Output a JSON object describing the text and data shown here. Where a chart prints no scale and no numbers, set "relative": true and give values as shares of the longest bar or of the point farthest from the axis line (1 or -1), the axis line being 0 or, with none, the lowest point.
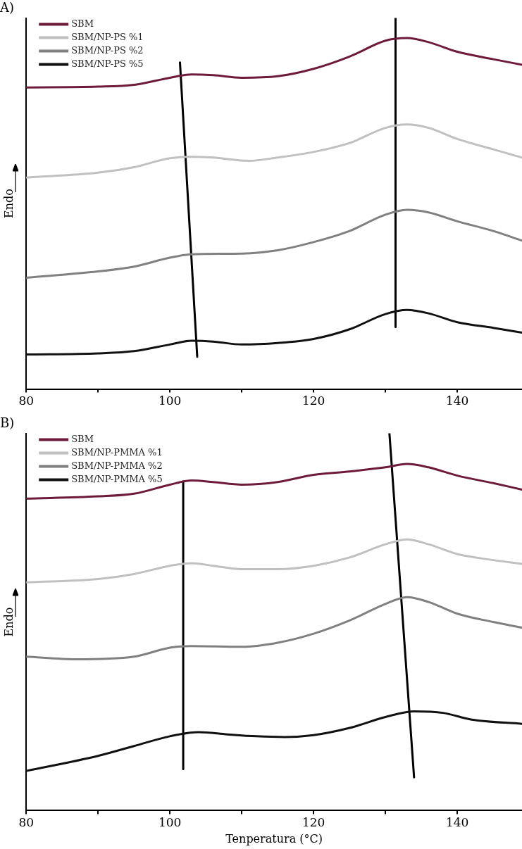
{
  "chart_data": [
    {
      "type": "line",
      "title": "A)",
      "ylabel": "Endo",
      "relative": true,
      "legend": "top left",
      "marker": "none",
      "line_style": "solid",
      "grid": false,
      "tick_labels": "x",
      "xlim": [
        80,
        149
      ],
      "xticks": [
        80,
        {
          "value": 90,
          "label": null
        },
        100,
        {
          "value": 110,
          "label": null
        },
        120,
        {
          "value": 130,
          "label": null
        },
        140
      ],
      "series": [
        {
          "name": "SBM",
          "color": "#6e1a3a",
          "x": [
            80,
            90,
            95,
            100,
            103,
            106,
            110,
            115,
            120,
            125,
            130,
            133,
            136,
            140,
            145,
            149
          ],
          "values": [
            0.813,
            0.815,
            0.82,
            0.839,
            0.848,
            0.846,
            0.839,
            0.843,
            0.863,
            0.896,
            0.939,
            0.946,
            0.935,
            0.909,
            0.889,
            0.874
          ]
        },
        {
          "name": "SBM/NP-PS %1",
          "color": "#c0c0c0",
          "x": [
            80,
            90,
            95,
            100,
            103,
            106,
            111,
            115,
            120,
            125,
            130,
            133,
            136,
            140,
            145,
            149
          ],
          "values": [
            0.57,
            0.583,
            0.598,
            0.622,
            0.626,
            0.624,
            0.615,
            0.624,
            0.639,
            0.663,
            0.704,
            0.713,
            0.704,
            0.674,
            0.646,
            0.624
          ]
        },
        {
          "name": "SBM/NP-PS %2",
          "color": "#808080",
          "x": [
            80,
            90,
            95,
            100,
            103,
            110,
            115,
            120,
            125,
            130,
            133,
            136,
            140,
            145,
            149
          ],
          "values": [
            0.3,
            0.317,
            0.33,
            0.354,
            0.363,
            0.365,
            0.374,
            0.396,
            0.426,
            0.47,
            0.483,
            0.476,
            0.452,
            0.426,
            0.4
          ]
        },
        {
          "name": "SBM/NP-PS %5",
          "color": "#111111",
          "x": [
            80,
            90,
            95,
            100,
            103,
            106,
            110,
            115,
            120,
            125,
            130,
            133,
            136,
            140,
            145,
            149
          ],
          "values": [
            0.093,
            0.096,
            0.102,
            0.12,
            0.13,
            0.128,
            0.12,
            0.124,
            0.135,
            0.161,
            0.202,
            0.213,
            0.204,
            0.18,
            0.165,
            0.152
          ]
        },
        {
          "color": "#000000",
          "x": [
            101.4,
            103.8
          ],
          "values": [
            0.88,
            0.087
          ]
        },
        {
          "color": "#000000",
          "x": [
            131.4,
            131.4
          ],
          "values": [
            1.0,
            0.167
          ]
        }
      ]
    },
    {
      "type": "line",
      "title": "B)",
      "xlabel": "Tenperatura (°C)",
      "ylabel": "Endo",
      "relative": true,
      "legend": "top left",
      "marker": "none",
      "line_style": "solid",
      "grid": false,
      "tick_labels": "x",
      "xlim": [
        80,
        149
      ],
      "xticks": [
        80,
        {
          "value": 90,
          "label": null
        },
        100,
        {
          "value": 110,
          "label": null
        },
        120,
        {
          "value": 130,
          "label": null
        },
        140
      ],
      "series": [
        {
          "name": "SBM",
          "color": "#6e1a3a",
          "x": [
            80,
            90,
            95,
            100,
            103,
            106,
            110,
            115,
            120,
            125,
            130,
            133,
            136,
            140,
            145,
            149
          ],
          "values": [
            0.827,
            0.833,
            0.84,
            0.864,
            0.875,
            0.871,
            0.864,
            0.871,
            0.89,
            0.899,
            0.91,
            0.919,
            0.91,
            0.888,
            0.868,
            0.851
          ]
        },
        {
          "name": "SBM/NP-PMMA %1",
          "color": "#c0c0c0",
          "x": [
            80,
            90,
            95,
            100,
            103,
            106,
            110,
            115,
            120,
            125,
            130,
            133,
            136,
            140,
            145,
            149
          ],
          "values": [
            0.605,
            0.614,
            0.627,
            0.649,
            0.656,
            0.649,
            0.64,
            0.64,
            0.649,
            0.671,
            0.706,
            0.719,
            0.706,
            0.68,
            0.664,
            0.654
          ]
        },
        {
          "name": "SBM/NP-PMMA %2",
          "color": "#808080",
          "x": [
            80,
            87,
            95,
            100,
            103,
            110,
            115,
            120,
            125,
            130,
            133,
            136,
            140,
            145,
            149
          ],
          "values": [
            0.408,
            0.401,
            0.408,
            0.432,
            0.436,
            0.434,
            0.445,
            0.469,
            0.504,
            0.548,
            0.566,
            0.553,
            0.522,
            0.5,
            0.485
          ]
        },
        {
          "name": "SBM/NP-PMMA %5",
          "color": "#111111",
          "x": [
            80,
            90,
            95,
            100,
            104,
            108,
            112,
            116,
            120,
            125,
            130,
            134,
            138,
            142,
            149
          ],
          "values": [
            0.105,
            0.145,
            0.171,
            0.197,
            0.208,
            0.202,
            0.197,
            0.195,
            0.2,
            0.219,
            0.248,
            0.263,
            0.259,
            0.241,
            0.23
          ]
        },
        {
          "color": "#000000",
          "x": [
            101.85,
            101.85
          ],
          "values": [
            0.873,
            0.11
          ]
        },
        {
          "color": "#000000",
          "x": [
            130.55,
            133.98
          ],
          "values": [
            1.0,
            0.088
          ]
        }
      ]
    }
  ]
}
